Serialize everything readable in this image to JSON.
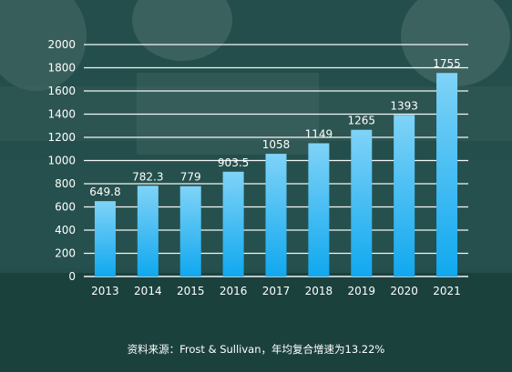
{
  "chart_data": {
    "type": "bar",
    "categories": [
      "2013",
      "2014",
      "2015",
      "2016",
      "2017",
      "2018",
      "2019",
      "2020",
      "2021"
    ],
    "values": [
      649.8,
      782.3,
      779,
      903.5,
      1058,
      1149,
      1265,
      1393,
      1755
    ],
    "data_labels": [
      "649.8",
      "782.3",
      "779",
      "903.5",
      "1058",
      "1149",
      "1265",
      "1393",
      "1755"
    ],
    "y_ticks": [
      0,
      200,
      400,
      600,
      800,
      1000,
      1200,
      1400,
      1600,
      1800,
      2000
    ],
    "ylim": [
      0,
      2000
    ],
    "grid": true,
    "title": "",
    "xlabel": "",
    "ylabel": ""
  },
  "colors": {
    "bar_top": "#7fd3f7",
    "bar_bottom": "#10a8ef",
    "gridline": "#ffffff",
    "text": "#ffffff"
  },
  "footer": {
    "source": "资料来源：Frost & Sullivan，年均复合增速为13.22%"
  }
}
